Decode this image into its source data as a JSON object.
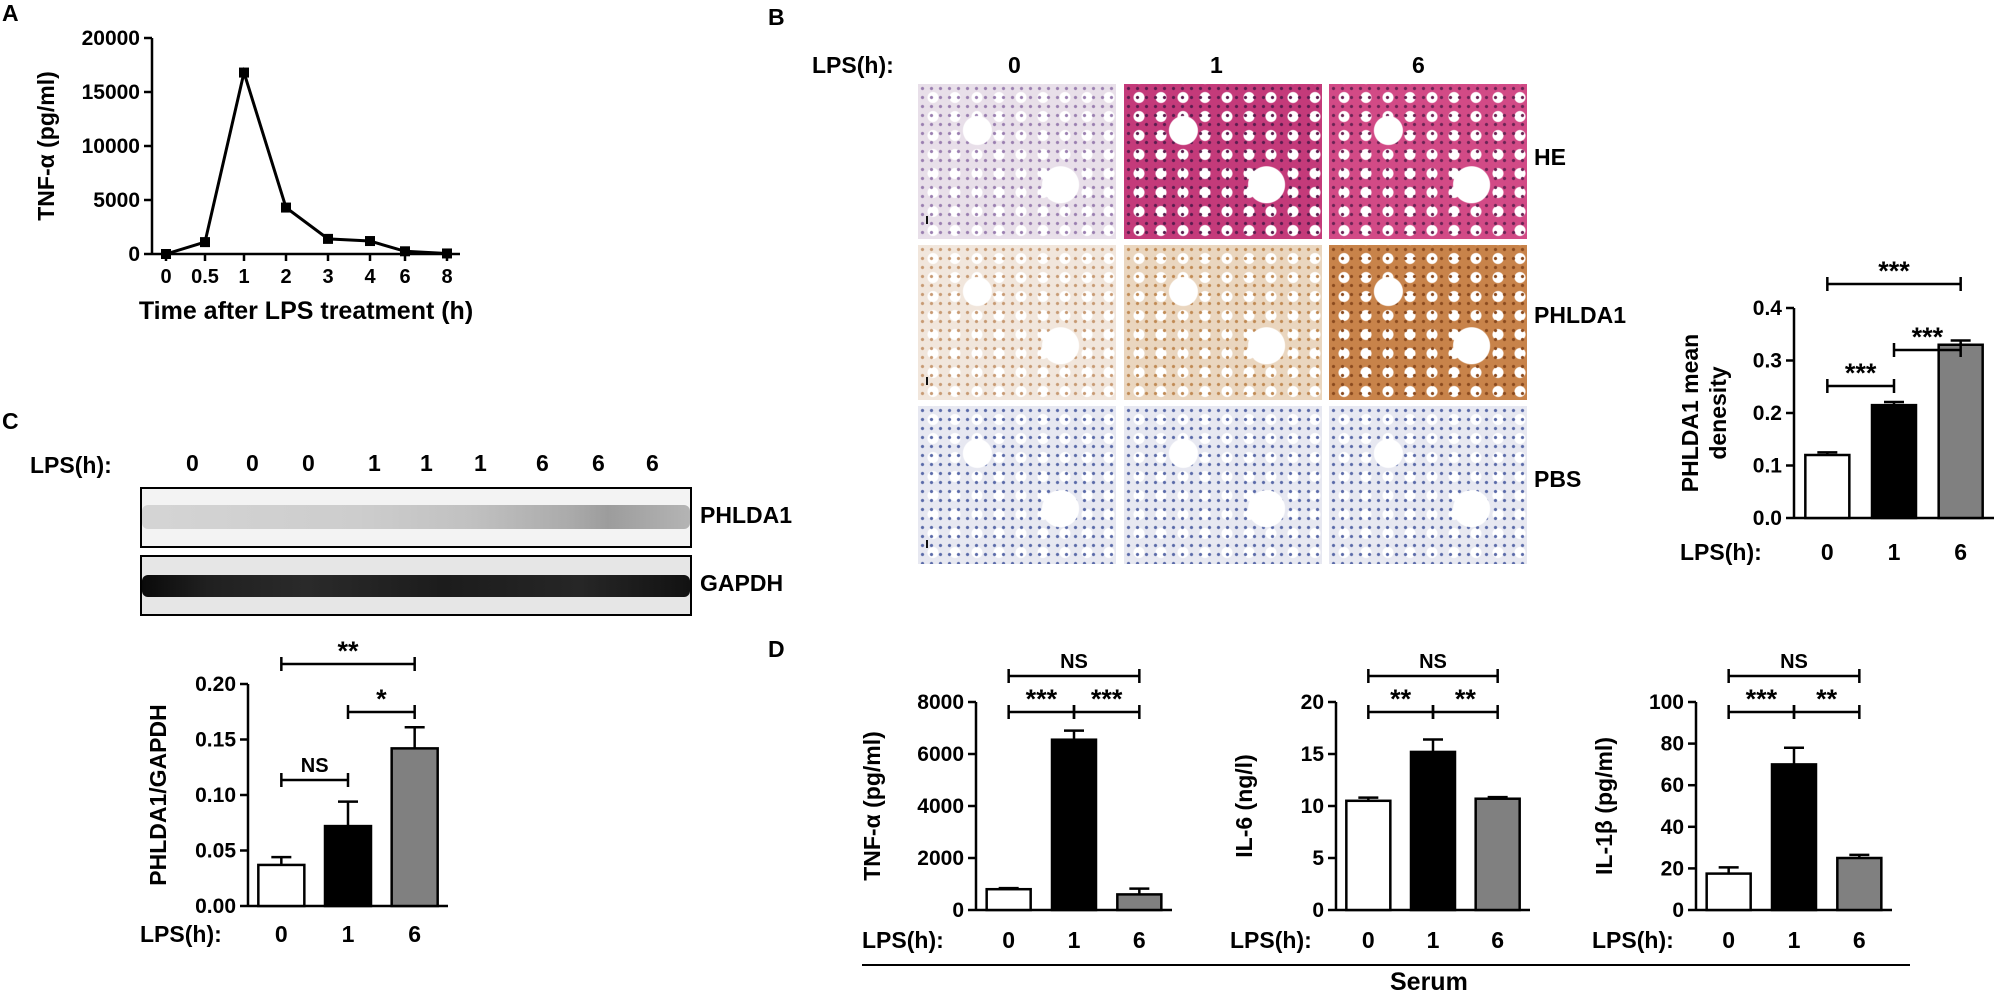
{
  "panel_labels": {
    "a": "A",
    "b": "B",
    "c": "C",
    "d": "D"
  },
  "panel_b": {
    "lps_label": "LPS(h):",
    "columns": [
      "0",
      "1",
      "6"
    ],
    "rows": [
      "HE",
      "PHLDA1",
      "PBS"
    ],
    "stain_colors": {
      "he_0": "#e8dfe9",
      "he_1": "#c43a7a",
      "he_6": "#d24a86",
      "phlda1_0": "#f1e6dc",
      "phlda1_1": "#ead6bf",
      "phlda1_6": "#c8834a",
      "pbs": "#e7e8f1"
    }
  },
  "panel_c": {
    "lps_label": "LPS(h):",
    "lanes": [
      "0",
      "0",
      "0",
      "1",
      "1",
      "1",
      "6",
      "6",
      "6"
    ],
    "blots": [
      "PHLDA1",
      "GAPDH"
    ]
  },
  "panel_d_caption": "Serum",
  "chart_data": [
    {
      "id": "A",
      "type": "line",
      "categories": [
        "0",
        "0.5",
        "1",
        "2",
        "3",
        "4",
        "6",
        "8"
      ],
      "values": [
        0,
        1100,
        16800,
        4300,
        1400,
        1200,
        250,
        50
      ],
      "ylabel": "TNF-α  (pg/ml)",
      "xlabel": "Time after LPS treatment (h)",
      "ylim": [
        0,
        20000
      ],
      "yticks": [
        "0",
        "5000",
        "10000",
        "15000",
        "20000"
      ],
      "grid": false
    },
    {
      "id": "B",
      "type": "bar",
      "categories": [
        "0",
        "1",
        "6"
      ],
      "values": [
        0.12,
        0.215,
        0.33
      ],
      "errors": [
        0.005,
        0.006,
        0.008
      ],
      "colors": [
        "#ffffff",
        "#000000",
        "#808080"
      ],
      "ylabel": "PHLDA1 mean\ndenesity",
      "x_prefix": "LPS(h):",
      "ylim": [
        0,
        0.4
      ],
      "yticks": [
        "0.0",
        "0.1",
        "0.2",
        "0.3",
        "0.4"
      ],
      "significance": [
        {
          "from": 0,
          "to": 1,
          "label": "***"
        },
        {
          "from": 1,
          "to": 2,
          "label": "***"
        },
        {
          "from": 0,
          "to": 2,
          "label": "***"
        }
      ]
    },
    {
      "id": "C",
      "type": "bar",
      "categories": [
        "0",
        "1",
        "6"
      ],
      "values": [
        0.037,
        0.072,
        0.142
      ],
      "errors": [
        0.007,
        0.022,
        0.019
      ],
      "colors": [
        "#ffffff",
        "#000000",
        "#808080"
      ],
      "ylabel": "PHLDA1/GAPDH",
      "x_prefix": "LPS(h):",
      "ylim": [
        0,
        0.2
      ],
      "yticks": [
        "0.00",
        "0.05",
        "0.10",
        "0.15",
        "0.20"
      ],
      "significance": [
        {
          "from": 0,
          "to": 1,
          "label": "NS"
        },
        {
          "from": 1,
          "to": 2,
          "label": "*"
        },
        {
          "from": 0,
          "to": 2,
          "label": "**"
        }
      ]
    },
    {
      "id": "D1",
      "type": "bar",
      "categories": [
        "0",
        "1",
        "6"
      ],
      "values": [
        800,
        6550,
        600
      ],
      "errors": [
        40,
        350,
        220
      ],
      "colors": [
        "#ffffff",
        "#000000",
        "#808080"
      ],
      "ylabel": "TNF-α (pg/ml)",
      "x_prefix": "LPS(h):",
      "ylim": [
        0,
        8000
      ],
      "yticks": [
        "0",
        "2000",
        "4000",
        "6000",
        "8000"
      ],
      "significance": [
        {
          "from": 0,
          "to": 1,
          "label": "***"
        },
        {
          "from": 1,
          "to": 2,
          "label": "***"
        },
        {
          "from": 0,
          "to": 2,
          "label": "NS"
        }
      ]
    },
    {
      "id": "D2",
      "type": "bar",
      "categories": [
        "0",
        "1",
        "6"
      ],
      "values": [
        10.5,
        15.2,
        10.7
      ],
      "errors": [
        0.3,
        1.2,
        0.15
      ],
      "colors": [
        "#ffffff",
        "#000000",
        "#808080"
      ],
      "ylabel": "IL-6 (ng/l)",
      "x_prefix": "LPS(h):",
      "ylim": [
        0,
        20
      ],
      "yticks": [
        "0",
        "5",
        "10",
        "15",
        "20"
      ],
      "significance": [
        {
          "from": 0,
          "to": 1,
          "label": "**"
        },
        {
          "from": 1,
          "to": 2,
          "label": "**"
        },
        {
          "from": 0,
          "to": 2,
          "label": "NS"
        }
      ]
    },
    {
      "id": "D3",
      "type": "bar",
      "categories": [
        "0",
        "1",
        "6"
      ],
      "values": [
        17.5,
        70,
        25
      ],
      "errors": [
        3,
        8,
        1.5
      ],
      "colors": [
        "#ffffff",
        "#000000",
        "#808080"
      ],
      "ylabel": "IL-1β (pg/ml)",
      "x_prefix": "LPS(h):",
      "ylim": [
        0,
        100
      ],
      "yticks": [
        "0",
        "20",
        "40",
        "60",
        "80",
        "100"
      ],
      "significance": [
        {
          "from": 0,
          "to": 1,
          "label": "***"
        },
        {
          "from": 1,
          "to": 2,
          "label": "**"
        },
        {
          "from": 0,
          "to": 2,
          "label": "NS"
        }
      ]
    }
  ]
}
